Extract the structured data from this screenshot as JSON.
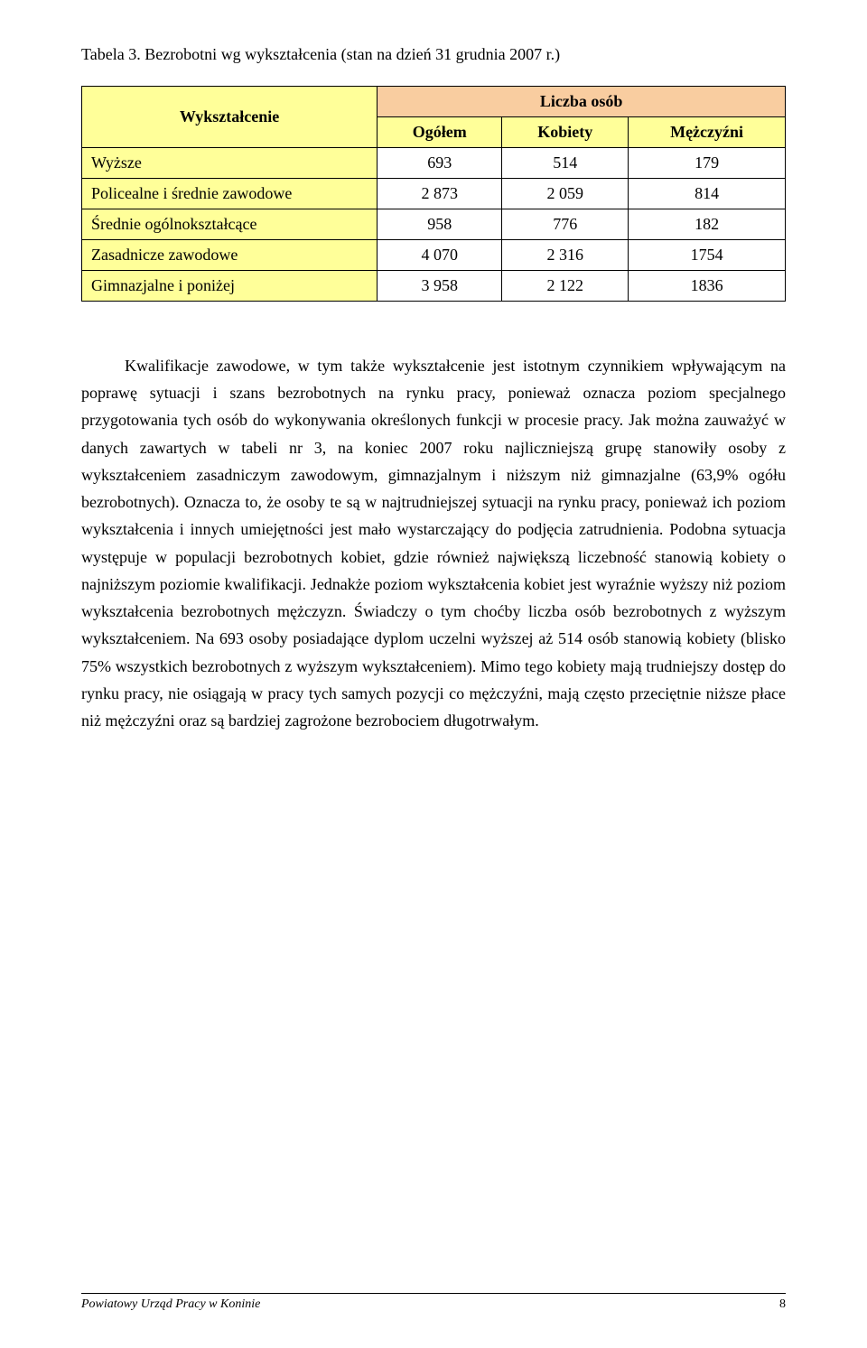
{
  "caption": "Tabela 3. Bezrobotni wg wykształcenia (stan na dzień 31 grudnia 2007 r.)",
  "table": {
    "row_header": "Wykształcenie",
    "supercol": "Liczba osób",
    "columns": [
      "Ogółem",
      "Kobiety",
      "Mężczyźni"
    ],
    "rows": [
      {
        "label": "Wyższe",
        "cells": [
          "693",
          "514",
          "179"
        ]
      },
      {
        "label": "Policealne i średnie zawodowe",
        "cells": [
          "2 873",
          "2 059",
          "814"
        ]
      },
      {
        "label": "Średnie ogólnokształcące",
        "cells": [
          "958",
          "776",
          "182"
        ]
      },
      {
        "label": "Zasadnicze zawodowe",
        "cells": [
          "4 070",
          "2 316",
          "1754"
        ]
      },
      {
        "label": "Gimnazjalne i poniżej",
        "cells": [
          "3 958",
          "2 122",
          "1836"
        ]
      }
    ],
    "colors": {
      "super_header_bg": "#f9cda0",
      "sub_header_bg": "#ffff99",
      "label_bg": "#ffff99",
      "cell_bg": "#ffffff",
      "border": "#000000"
    },
    "fontsize": 18
  },
  "body": "Kwalifikacje zawodowe, w tym także wykształcenie jest istotnym czynnikiem wpływającym na poprawę sytuacji i szans bezrobotnych na rynku pracy, ponieważ oznacza poziom specjalnego przygotowania tych osób do wykonywania określonych funkcji w procesie pracy. Jak można zauważyć w danych zawartych w tabeli nr 3, na koniec 2007 roku najliczniejszą grupę stanowiły osoby z wykształceniem zasadniczym zawodowym, gimnazjalnym i niższym niż gimnazjalne (63,9% ogółu bezrobotnych). Oznacza to, że osoby te są w najtrudniejszej sytuacji na rynku pracy, ponieważ ich poziom wykształcenia i innych umiejętności jest mało wystarczający do podjęcia zatrudnienia. Podobna sytuacja występuje w populacji bezrobotnych kobiet, gdzie również największą liczebność stanowią kobiety o najniższym poziomie kwalifikacji. Jednakże poziom wykształcenia kobiet jest wyraźnie wyższy niż poziom wykształcenia bezrobotnych mężczyzn. Świadczy o tym choćby liczba osób bezrobotnych z wyższym wykształceniem. Na 693 osoby posiadające dyplom uczelni wyższej aż 514 osób stanowią kobiety (blisko 75% wszystkich bezrobotnych z wyższym wykształceniem). Mimo tego kobiety mają trudniejszy dostęp do rynku pracy, nie osiągają w pracy tych samych pozycji co mężczyźni, mają często przeciętnie niższe płace niż mężczyźni oraz są bardziej zagrożone bezrobociem długotrwałym.",
  "footer": {
    "left": "Powiatowy Urząd Pracy w Koninie",
    "page": "8"
  }
}
